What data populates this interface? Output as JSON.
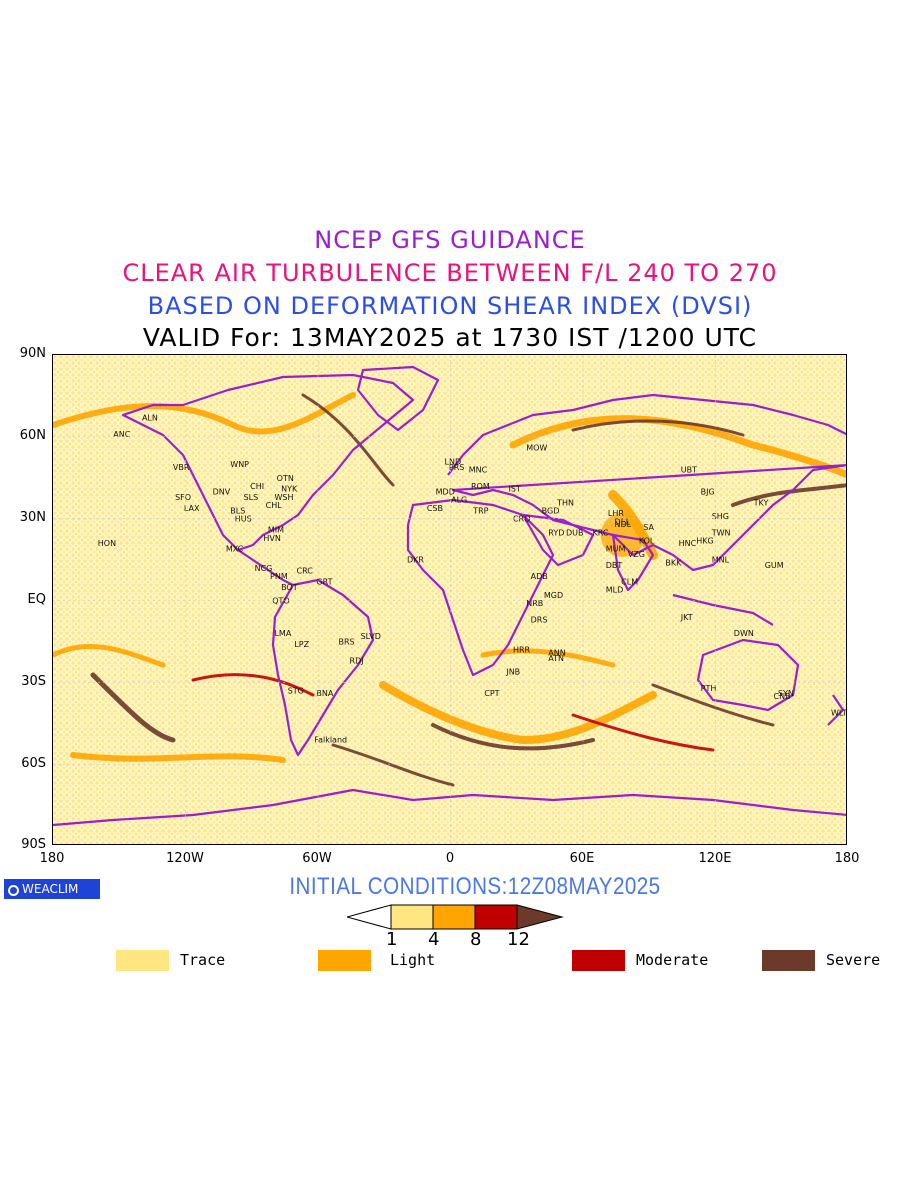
{
  "titles": {
    "line1": "NCEP GFS GUIDANCE",
    "line2": "CLEAR AIR TURBULENCE BETWEEN F/L 240 TO 270",
    "line3": "BASED ON DEFORMATION SHEAR INDEX (DVSI)",
    "line4": "VALID For: 13MAY2025 at 1730 IST /1200 UTC"
  },
  "axes": {
    "lat_labels": [
      "90N",
      "60N",
      "30N",
      "EQ",
      "30S",
      "60S",
      "90S"
    ],
    "lon_labels": [
      "180",
      "120W",
      "60W",
      "0",
      "60E",
      "120E",
      "180"
    ]
  },
  "logo": {
    "text": "WEACLIM"
  },
  "initial_conditions": "INITIAL CONDITIONS:12Z08MAY2025",
  "colorbar": {
    "ticks": [
      "1",
      "4",
      "8",
      "12"
    ],
    "colors": [
      "#ffe680",
      "#ffa500",
      "#c00000",
      "#6b3a2a"
    ]
  },
  "legend": [
    {
      "label": "Trace",
      "color": "#ffe680"
    },
    {
      "label": "Light",
      "color": "#ffa500"
    },
    {
      "label": "Moderate",
      "color": "#c00000"
    },
    {
      "label": "Severe",
      "color": "#6b3a2a"
    }
  ],
  "colors": {
    "coastline": "#9a1fd0",
    "trace": "#ffe680",
    "light": "#ffa500",
    "moderate": "#c00000",
    "severe": "#6b3a2a"
  },
  "stations": [
    {
      "code": "ANC",
      "lon": -150,
      "lat": 61
    },
    {
      "code": "ALN",
      "lon": -137,
      "lat": 67
    },
    {
      "code": "VBR",
      "lon": -123,
      "lat": 49
    },
    {
      "code": "WNP",
      "lon": -97,
      "lat": 50
    },
    {
      "code": "DNV",
      "lon": -105,
      "lat": 40
    },
    {
      "code": "SFO",
      "lon": -122,
      "lat": 38
    },
    {
      "code": "LAX",
      "lon": -118,
      "lat": 34
    },
    {
      "code": "CHI",
      "lon": -88,
      "lat": 42
    },
    {
      "code": "OTN",
      "lon": -76,
      "lat": 45
    },
    {
      "code": "NYK",
      "lon": -74,
      "lat": 41
    },
    {
      "code": "SLS",
      "lon": -91,
      "lat": 38
    },
    {
      "code": "WSH",
      "lon": -77,
      "lat": 38
    },
    {
      "code": "BLS",
      "lon": -97,
      "lat": 33
    },
    {
      "code": "HUS",
      "lon": -95,
      "lat": 30
    },
    {
      "code": "CHL",
      "lon": -81,
      "lat": 35
    },
    {
      "code": "MIM",
      "lon": -80,
      "lat": 26
    },
    {
      "code": "HVN",
      "lon": -82,
      "lat": 23
    },
    {
      "code": "MXC",
      "lon": -99,
      "lat": 19
    },
    {
      "code": "HON",
      "lon": -157,
      "lat": 21
    },
    {
      "code": "NCG",
      "lon": -86,
      "lat": 12
    },
    {
      "code": "CRC",
      "lon": -67,
      "lat": 11
    },
    {
      "code": "PNM",
      "lon": -79,
      "lat": 9
    },
    {
      "code": "BOT",
      "lon": -74,
      "lat": 5
    },
    {
      "code": "GRT",
      "lon": -58,
      "lat": 7
    },
    {
      "code": "QTO",
      "lon": -78,
      "lat": 0
    },
    {
      "code": "LMA",
      "lon": -77,
      "lat": -12
    },
    {
      "code": "LPZ",
      "lon": -68,
      "lat": -16
    },
    {
      "code": "BRS",
      "lon": -48,
      "lat": -15
    },
    {
      "code": "SLVD",
      "lon": -38,
      "lat": -13
    },
    {
      "code": "RDJ",
      "lon": -43,
      "lat": -22
    },
    {
      "code": "STG",
      "lon": -71,
      "lat": -33
    },
    {
      "code": "BNA",
      "lon": -58,
      "lat": -34
    },
    {
      "code": "Falkland",
      "lon": -59,
      "lat": -51
    },
    {
      "code": "LND",
      "lon": 0,
      "lat": 51
    },
    {
      "code": "PRS",
      "lon": 2,
      "lat": 49
    },
    {
      "code": "MNC",
      "lon": 11,
      "lat": 48
    },
    {
      "code": "MDD",
      "lon": -4,
      "lat": 40
    },
    {
      "code": "ROM",
      "lon": 12,
      "lat": 42
    },
    {
      "code": "IST",
      "lon": 29,
      "lat": 41
    },
    {
      "code": "ALG",
      "lon": 3,
      "lat": 37
    },
    {
      "code": "CSB",
      "lon": -8,
      "lat": 34
    },
    {
      "code": "TRP",
      "lon": 13,
      "lat": 33
    },
    {
      "code": "CRO",
      "lon": 31,
      "lat": 30
    },
    {
      "code": "MOW",
      "lon": 37,
      "lat": 56
    },
    {
      "code": "BGD",
      "lon": 44,
      "lat": 33
    },
    {
      "code": "THN",
      "lon": 51,
      "lat": 36
    },
    {
      "code": "RYD",
      "lon": 47,
      "lat": 25
    },
    {
      "code": "DUB",
      "lon": 55,
      "lat": 25
    },
    {
      "code": "KRC",
      "lon": 67,
      "lat": 25
    },
    {
      "code": "DKR",
      "lon": -17,
      "lat": 15
    },
    {
      "code": "ADB",
      "lon": 39,
      "lat": 9
    },
    {
      "code": "MGD",
      "lon": 45,
      "lat": 2
    },
    {
      "code": "NRB",
      "lon": 37,
      "lat": -1
    },
    {
      "code": "DRS",
      "lon": 39,
      "lat": -7
    },
    {
      "code": "ANN",
      "lon": 47,
      "lat": -19
    },
    {
      "code": "HRR",
      "lon": 31,
      "lat": -18
    },
    {
      "code": "ATN",
      "lon": 47,
      "lat": -21
    },
    {
      "code": "JNB",
      "lon": 28,
      "lat": -26
    },
    {
      "code": "CPT",
      "lon": 18,
      "lat": -34
    },
    {
      "code": "DEL",
      "lon": 77,
      "lat": 29
    },
    {
      "code": "LHR",
      "lon": 74,
      "lat": 32
    },
    {
      "code": "NDL",
      "lon": 77,
      "lat": 28
    },
    {
      "code": "MUM",
      "lon": 73,
      "lat": 19
    },
    {
      "code": "VZG",
      "lon": 83,
      "lat": 17
    },
    {
      "code": "KOL",
      "lon": 88,
      "lat": 22
    },
    {
      "code": "DBT",
      "lon": 73,
      "lat": 13
    },
    {
      "code": "CLM",
      "lon": 80,
      "lat": 7
    },
    {
      "code": "MLD",
      "lon": 73,
      "lat": 4
    },
    {
      "code": "SA",
      "lon": 90,
      "lat": 27
    },
    {
      "code": "BKK",
      "lon": 100,
      "lat": 14
    },
    {
      "code": "HNC",
      "lon": 106,
      "lat": 21
    },
    {
      "code": "HKG",
      "lon": 114,
      "lat": 22
    },
    {
      "code": "MNL",
      "lon": 121,
      "lat": 15
    },
    {
      "code": "SHG",
      "lon": 121,
      "lat": 31
    },
    {
      "code": "TWN",
      "lon": 121,
      "lat": 25
    },
    {
      "code": "BJG",
      "lon": 116,
      "lat": 40
    },
    {
      "code": "TKY",
      "lon": 140,
      "lat": 36
    },
    {
      "code": "UBT",
      "lon": 107,
      "lat": 48
    },
    {
      "code": "GUM",
      "lon": 145,
      "lat": 13
    },
    {
      "code": "JKT",
      "lon": 107,
      "lat": -6
    },
    {
      "code": "DWN",
      "lon": 131,
      "lat": -12
    },
    {
      "code": "PTH",
      "lon": 116,
      "lat": -32
    },
    {
      "code": "SYN",
      "lon": 151,
      "lat": -34
    },
    {
      "code": "CNB",
      "lon": 149,
      "lat": -35
    },
    {
      "code": "WLT",
      "lon": 175,
      "lat": -41
    }
  ]
}
